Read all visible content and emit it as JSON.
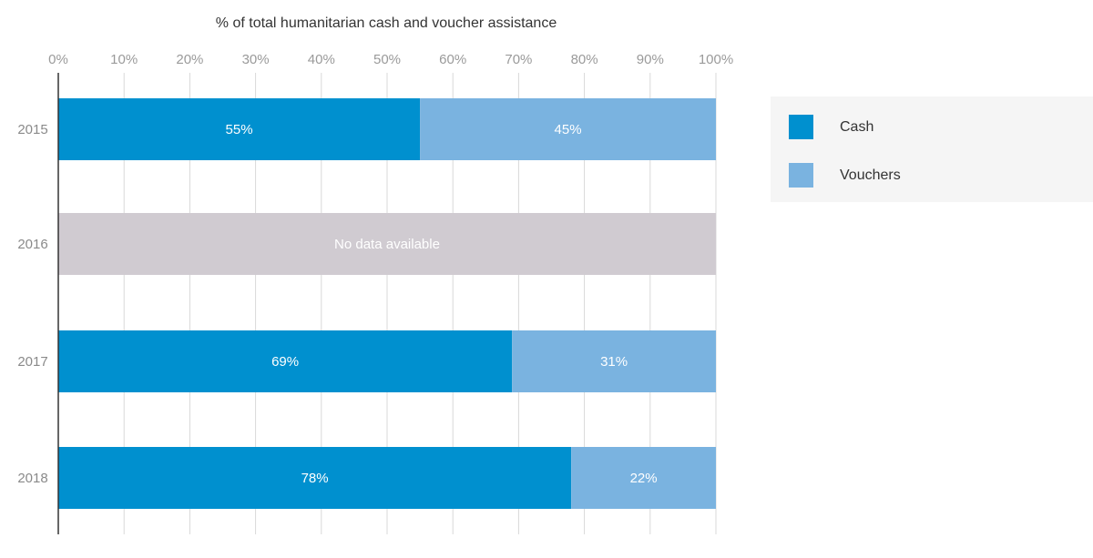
{
  "chart_data": {
    "type": "bar",
    "orientation": "horizontal",
    "stacked": true,
    "title": "% of total humanitarian cash and voucher assistance",
    "categories": [
      "2015",
      "2016",
      "2017",
      "2018"
    ],
    "series": [
      {
        "name": "Cash",
        "color": "#0090cf",
        "values": [
          55,
          null,
          69,
          78
        ],
        "labels": [
          "55%",
          "",
          "69%",
          "78%"
        ]
      },
      {
        "name": "Vouchers",
        "color": "#7ab3e0",
        "values": [
          45,
          null,
          31,
          22
        ],
        "labels": [
          "45%",
          "",
          "31%",
          "22%"
        ]
      }
    ],
    "no_data": {
      "category": "2016",
      "label": "No data available",
      "color": "#d0cbd1"
    },
    "xlim": [
      0,
      100
    ],
    "xticks": [
      "0%",
      "10%",
      "20%",
      "30%",
      "40%",
      "50%",
      "60%",
      "70%",
      "80%",
      "90%",
      "100%"
    ],
    "grid": true,
    "legend": {
      "placement": "right",
      "items": [
        "Cash",
        "Vouchers"
      ]
    }
  }
}
